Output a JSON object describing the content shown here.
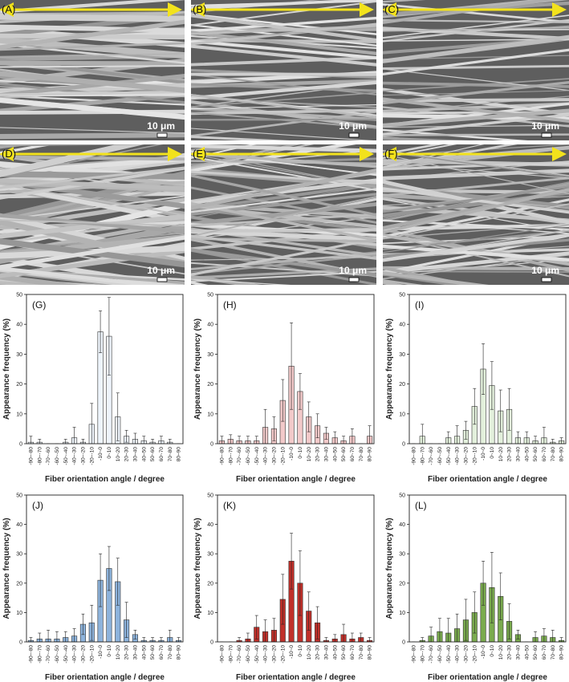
{
  "images": [
    {
      "label": "(A)",
      "scale": "10 μm"
    },
    {
      "label": "(B)",
      "scale": "10 μm"
    },
    {
      "label": "(C)",
      "scale": "10 μm"
    },
    {
      "label": "(D)",
      "scale": "10 μm"
    },
    {
      "label": "(E)",
      "scale": "10 μm"
    },
    {
      "label": "(F)",
      "scale": "10 μm"
    }
  ],
  "chart_data": [
    {
      "type": "bar",
      "panel": "(G)",
      "ylabel": "Appearance frequency (%)",
      "xlabel": "Fiber orientation angle / degree",
      "categories": [
        "-90~-80",
        "-80~-70",
        "-70~-60",
        "-60~-50",
        "-50~-40",
        "-40~-30",
        "-30~-20",
        "-20~-10",
        "-10~0",
        "0~10",
        "10~20",
        "20~30",
        "30~40",
        "40~50",
        "50~60",
        "60~70",
        "70~80",
        "80~90"
      ],
      "values": [
        0.5,
        0.5,
        0,
        0,
        0.5,
        2,
        0.5,
        6.5,
        37.5,
        36,
        9,
        2.5,
        1.5,
        1,
        0.5,
        1,
        0.5,
        0
      ],
      "errors": [
        2,
        1,
        0,
        0,
        1,
        3.5,
        1,
        7,
        7,
        13,
        8,
        2,
        2,
        1.5,
        1,
        1.5,
        1,
        0
      ],
      "color": "#eef4fb",
      "ylim": [
        0,
        50
      ],
      "yticks": [
        0,
        10,
        20,
        30,
        40,
        50
      ]
    },
    {
      "type": "bar",
      "panel": "(H)",
      "ylabel": "Appearance frequency (%)",
      "xlabel": "Fiber orientation angle / degree",
      "categories": [
        "-90~-80",
        "-80~-70",
        "-70~-60",
        "-60~-50",
        "-50~-40",
        "-40~-30",
        "-30~-20",
        "-20~-10",
        "-10~0",
        "0~10",
        "10~20",
        "20~30",
        "30~40",
        "40~50",
        "50~60",
        "60~70",
        "70~80",
        "80~90"
      ],
      "values": [
        1,
        1.5,
        1,
        1,
        1,
        5.5,
        5,
        14.5,
        26,
        17.5,
        9,
        6,
        3.5,
        2,
        1,
        2.5,
        0,
        2.5
      ],
      "errors": [
        1.5,
        1.5,
        1.5,
        1.5,
        1.5,
        6,
        4,
        7,
        14.5,
        6,
        5,
        4,
        2,
        2,
        1.5,
        2.5,
        0,
        3.5
      ],
      "color": "#f2c9c9",
      "ylim": [
        0,
        50
      ],
      "yticks": [
        0,
        10,
        20,
        30,
        40,
        50
      ]
    },
    {
      "type": "bar",
      "panel": "(I)",
      "ylabel": "Appearance frequency (%)",
      "xlabel": "Fiber orientation angle / degree",
      "categories": [
        "-90~-80",
        "-80~-70",
        "-70~-60",
        "-60~-50",
        "-50~-40",
        "-40~-30",
        "-30~-20",
        "-20~-10",
        "-10~0",
        "0~10",
        "10~20",
        "20~30",
        "30~40",
        "40~50",
        "50~60",
        "60~70",
        "70~80",
        "80~90"
      ],
      "values": [
        0,
        2.5,
        0,
        0,
        2,
        2.5,
        4.5,
        12.5,
        25,
        19.5,
        11,
        11.5,
        2,
        2,
        1,
        2,
        0.5,
        1
      ],
      "errors": [
        0,
        4,
        0,
        0,
        2,
        3.5,
        3,
        6,
        8.5,
        8,
        7,
        7,
        2,
        2,
        1.5,
        3.5,
        1,
        1
      ],
      "color": "#e3f0dc",
      "ylim": [
        0,
        50
      ],
      "yticks": [
        0,
        10,
        20,
        30,
        40,
        50
      ]
    },
    {
      "type": "bar",
      "panel": "(J)",
      "ylabel": "Appearance frequency (%)",
      "xlabel": "Fiber orientation angle / degree",
      "categories": [
        "-90~-80",
        "-80~-70",
        "-70~-60",
        "-60~-50",
        "-50~-40",
        "-40~-30",
        "-30~-20",
        "-20~-10",
        "-10~0",
        "0~10",
        "10~20",
        "20~30",
        "30~40",
        "40~50",
        "50~60",
        "60~70",
        "70~80",
        "80~90"
      ],
      "values": [
        0.5,
        1,
        1,
        1,
        1.5,
        2,
        6,
        6.5,
        21,
        25,
        20.5,
        7.5,
        2.5,
        0.5,
        0.5,
        0.5,
        1.5,
        0.5
      ],
      "errors": [
        1,
        2,
        3,
        2.5,
        2,
        2.5,
        3.5,
        6,
        9,
        7.5,
        8,
        6,
        1.5,
        1,
        1,
        1,
        2.5,
        1
      ],
      "color": "#8db3dc",
      "ylim": [
        0,
        50
      ],
      "yticks": [
        0,
        10,
        20,
        30,
        40,
        50
      ]
    },
    {
      "type": "bar",
      "panel": "(K)",
      "ylabel": "Appearance frequency (%)",
      "xlabel": "Fiber orientation angle / degree",
      "categories": [
        "-90~-80",
        "-80~-70",
        "-70~-60",
        "-60~-50",
        "-50~-40",
        "-40~-30",
        "-30~-20",
        "-20~-10",
        "-10~0",
        "0~10",
        "10~20",
        "20~30",
        "30~40",
        "40~50",
        "50~60",
        "60~70",
        "70~80",
        "80~90"
      ],
      "values": [
        0,
        0,
        0.5,
        1,
        5,
        3.5,
        4,
        14.5,
        27.5,
        20,
        10.5,
        6.5,
        0.5,
        1,
        2.5,
        1,
        1.5,
        0.5
      ],
      "errors": [
        0,
        0,
        1,
        2,
        4,
        4,
        4,
        8.5,
        9.5,
        11,
        6.5,
        5.5,
        1,
        1.5,
        3.5,
        2,
        1.5,
        1
      ],
      "color": "#c0302a",
      "ylim": [
        0,
        50
      ],
      "yticks": [
        0,
        10,
        20,
        30,
        40,
        50
      ]
    },
    {
      "type": "bar",
      "panel": "(L)",
      "ylabel": "Appearance frequency (%)",
      "xlabel": "Fiber orientation angle / degree",
      "categories": [
        "-90~-80",
        "-80~-70",
        "-70~-60",
        "-60~-50",
        "-50~-40",
        "-40~-30",
        "-30~-20",
        "-20~-10",
        "-10~0",
        "0~10",
        "10~20",
        "20~30",
        "30~40",
        "40~50",
        "50~60",
        "60~70",
        "70~80",
        "80~90"
      ],
      "values": [
        0,
        0.5,
        2,
        3.5,
        3,
        4.5,
        7.5,
        10,
        20,
        18.5,
        15.5,
        7,
        2.5,
        0,
        1.5,
        2,
        1.5,
        0.5
      ],
      "errors": [
        0,
        1,
        3,
        4.5,
        5,
        5,
        7,
        7,
        7.5,
        12,
        8,
        6,
        1.5,
        0,
        2,
        2.5,
        2.5,
        1
      ],
      "color": "#7aab4e",
      "ylim": [
        0,
        50
      ],
      "yticks": [
        0,
        10,
        20,
        30,
        40,
        50
      ]
    }
  ]
}
